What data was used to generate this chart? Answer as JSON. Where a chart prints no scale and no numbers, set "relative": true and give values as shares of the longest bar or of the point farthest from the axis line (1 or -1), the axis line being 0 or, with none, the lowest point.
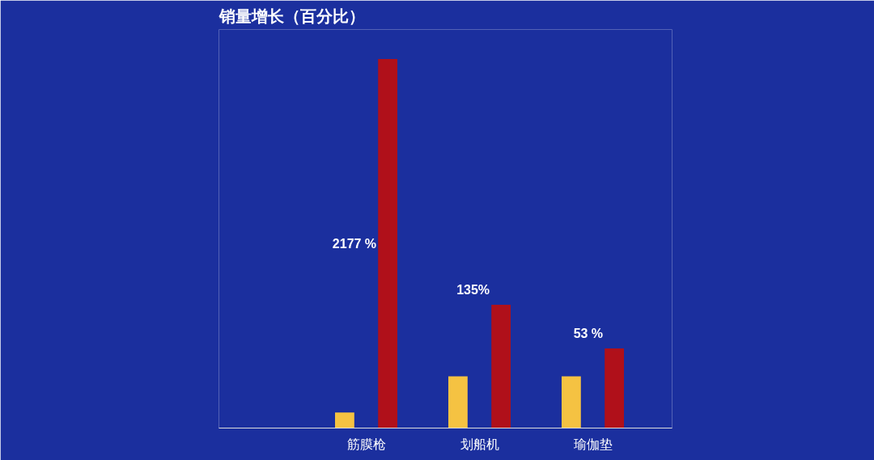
{
  "chart_data": {
    "type": "bar",
    "title": "销量增长（百分比）",
    "relative": true,
    "categories": [
      "筋膜枪",
      "划船机",
      "瑜伽垫"
    ],
    "series": [
      {
        "color": "#f5c242",
        "values": [
          0.042,
          0.14,
          0.14
        ]
      },
      {
        "color": "#b0101a",
        "values": [
          1,
          0.334,
          0.216
        ]
      }
    ],
    "annotations": [
      "2177 %",
      "135%",
      "53 %"
    ],
    "grid": false
  }
}
